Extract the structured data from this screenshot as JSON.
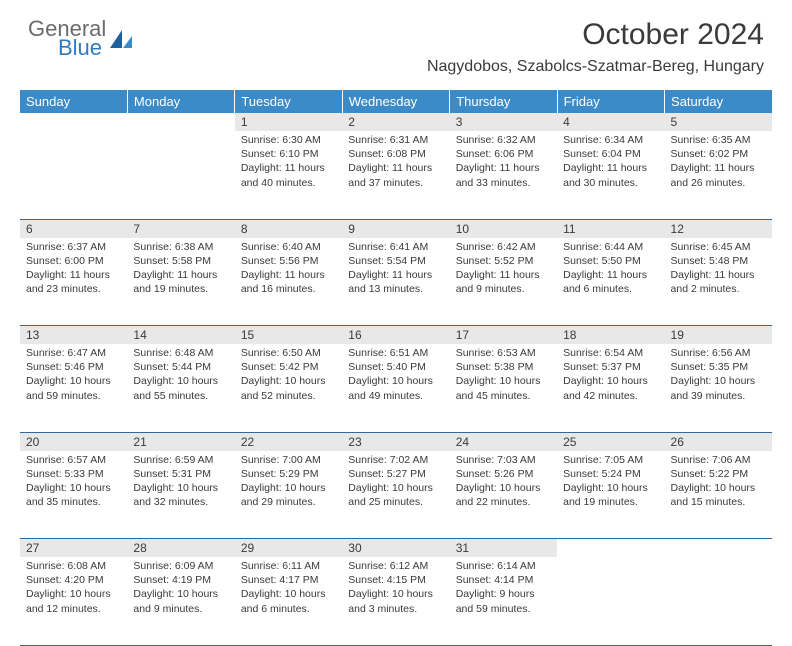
{
  "logo": {
    "top": "General",
    "bottom": "Blue"
  },
  "title": "October 2024",
  "location": "Nagydobos, Szabolcs-Szatmar-Bereg, Hungary",
  "colors": {
    "header_bg": "#3b8bc8",
    "header_text": "#ffffff",
    "daynum_bg": "#e8e8e8",
    "text": "#3a3a3a",
    "rule": "#2f6aa0",
    "logo_gray": "#6b6b6b",
    "logo_blue": "#2f7bbf"
  },
  "day_headers": [
    "Sunday",
    "Monday",
    "Tuesday",
    "Wednesday",
    "Thursday",
    "Friday",
    "Saturday"
  ],
  "weeks": [
    [
      null,
      null,
      {
        "n": "1",
        "sr": "6:30 AM",
        "ss": "6:10 PM",
        "dl": "11 hours and 40 minutes."
      },
      {
        "n": "2",
        "sr": "6:31 AM",
        "ss": "6:08 PM",
        "dl": "11 hours and 37 minutes."
      },
      {
        "n": "3",
        "sr": "6:32 AM",
        "ss": "6:06 PM",
        "dl": "11 hours and 33 minutes."
      },
      {
        "n": "4",
        "sr": "6:34 AM",
        "ss": "6:04 PM",
        "dl": "11 hours and 30 minutes."
      },
      {
        "n": "5",
        "sr": "6:35 AM",
        "ss": "6:02 PM",
        "dl": "11 hours and 26 minutes."
      }
    ],
    [
      {
        "n": "6",
        "sr": "6:37 AM",
        "ss": "6:00 PM",
        "dl": "11 hours and 23 minutes."
      },
      {
        "n": "7",
        "sr": "6:38 AM",
        "ss": "5:58 PM",
        "dl": "11 hours and 19 minutes."
      },
      {
        "n": "8",
        "sr": "6:40 AM",
        "ss": "5:56 PM",
        "dl": "11 hours and 16 minutes."
      },
      {
        "n": "9",
        "sr": "6:41 AM",
        "ss": "5:54 PM",
        "dl": "11 hours and 13 minutes."
      },
      {
        "n": "10",
        "sr": "6:42 AM",
        "ss": "5:52 PM",
        "dl": "11 hours and 9 minutes."
      },
      {
        "n": "11",
        "sr": "6:44 AM",
        "ss": "5:50 PM",
        "dl": "11 hours and 6 minutes."
      },
      {
        "n": "12",
        "sr": "6:45 AM",
        "ss": "5:48 PM",
        "dl": "11 hours and 2 minutes."
      }
    ],
    [
      {
        "n": "13",
        "sr": "6:47 AM",
        "ss": "5:46 PM",
        "dl": "10 hours and 59 minutes."
      },
      {
        "n": "14",
        "sr": "6:48 AM",
        "ss": "5:44 PM",
        "dl": "10 hours and 55 minutes."
      },
      {
        "n": "15",
        "sr": "6:50 AM",
        "ss": "5:42 PM",
        "dl": "10 hours and 52 minutes."
      },
      {
        "n": "16",
        "sr": "6:51 AM",
        "ss": "5:40 PM",
        "dl": "10 hours and 49 minutes."
      },
      {
        "n": "17",
        "sr": "6:53 AM",
        "ss": "5:38 PM",
        "dl": "10 hours and 45 minutes."
      },
      {
        "n": "18",
        "sr": "6:54 AM",
        "ss": "5:37 PM",
        "dl": "10 hours and 42 minutes."
      },
      {
        "n": "19",
        "sr": "6:56 AM",
        "ss": "5:35 PM",
        "dl": "10 hours and 39 minutes."
      }
    ],
    [
      {
        "n": "20",
        "sr": "6:57 AM",
        "ss": "5:33 PM",
        "dl": "10 hours and 35 minutes."
      },
      {
        "n": "21",
        "sr": "6:59 AM",
        "ss": "5:31 PM",
        "dl": "10 hours and 32 minutes."
      },
      {
        "n": "22",
        "sr": "7:00 AM",
        "ss": "5:29 PM",
        "dl": "10 hours and 29 minutes."
      },
      {
        "n": "23",
        "sr": "7:02 AM",
        "ss": "5:27 PM",
        "dl": "10 hours and 25 minutes."
      },
      {
        "n": "24",
        "sr": "7:03 AM",
        "ss": "5:26 PM",
        "dl": "10 hours and 22 minutes."
      },
      {
        "n": "25",
        "sr": "7:05 AM",
        "ss": "5:24 PM",
        "dl": "10 hours and 19 minutes."
      },
      {
        "n": "26",
        "sr": "7:06 AM",
        "ss": "5:22 PM",
        "dl": "10 hours and 15 minutes."
      }
    ],
    [
      {
        "n": "27",
        "sr": "6:08 AM",
        "ss": "4:20 PM",
        "dl": "10 hours and 12 minutes."
      },
      {
        "n": "28",
        "sr": "6:09 AM",
        "ss": "4:19 PM",
        "dl": "10 hours and 9 minutes."
      },
      {
        "n": "29",
        "sr": "6:11 AM",
        "ss": "4:17 PM",
        "dl": "10 hours and 6 minutes."
      },
      {
        "n": "30",
        "sr": "6:12 AM",
        "ss": "4:15 PM",
        "dl": "10 hours and 3 minutes."
      },
      {
        "n": "31",
        "sr": "6:14 AM",
        "ss": "4:14 PM",
        "dl": "9 hours and 59 minutes."
      },
      null,
      null
    ]
  ],
  "labels": {
    "sunrise": "Sunrise:",
    "sunset": "Sunset:",
    "daylight": "Daylight:"
  }
}
